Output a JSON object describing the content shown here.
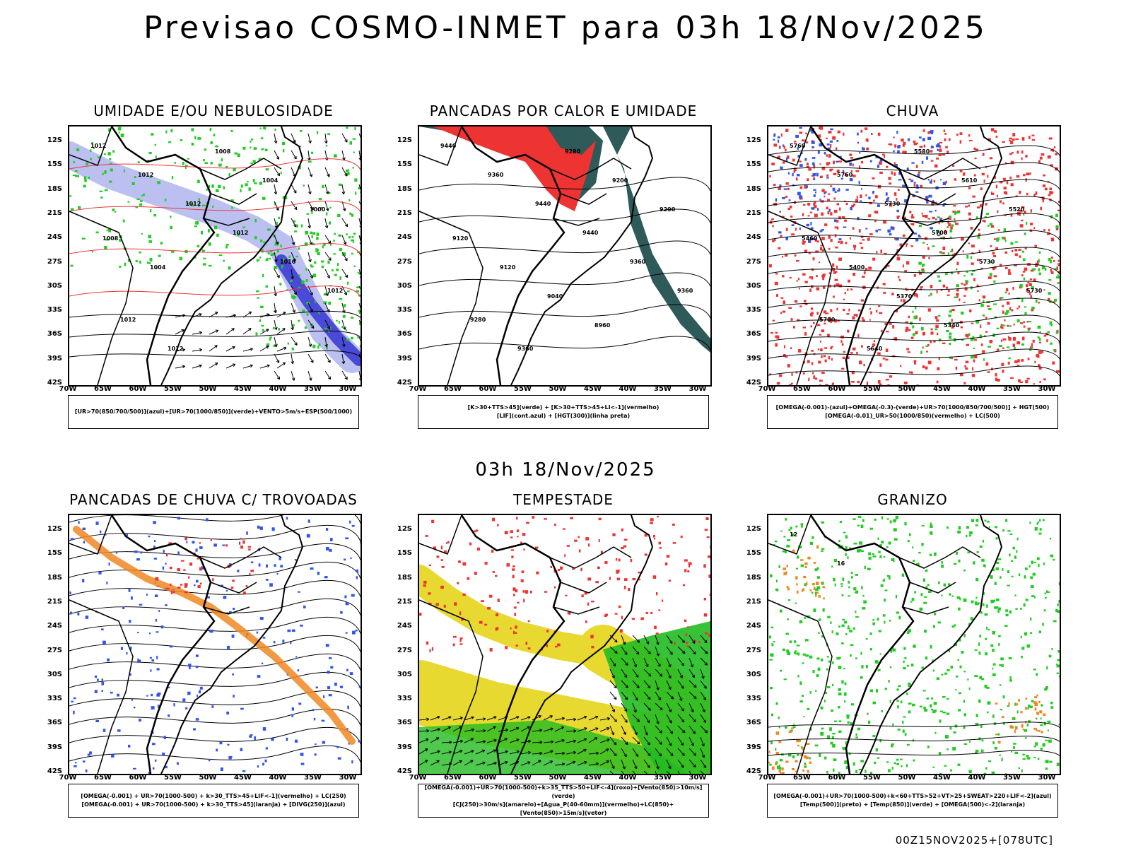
{
  "title": "Previsao COSMO-INMET  para 03h 18/Nov/2025",
  "mid_time": "03h 18/Nov/2025",
  "footer": "00Z15NOV2025+[078UTC]",
  "lat_labels": [
    "12S",
    "15S",
    "18S",
    "21S",
    "24S",
    "27S",
    "30S",
    "33S",
    "36S",
    "39S",
    "42S"
  ],
  "lon_labels": [
    "70W",
    "65W",
    "60W",
    "55W",
    "50W",
    "45W",
    "40W",
    "35W",
    "30W"
  ],
  "panels": [
    {
      "title": "UMIDADE E/OU NEBULOSIDADE",
      "legend": [
        "[UR>70(850/700/500)](azul)+[UR>70(1000/850)](verde)+VENTO>5m/s+ESP(500/1000)"
      ],
      "contours": [
        "1012",
        "1012",
        "1012",
        "1012",
        "1016",
        "1012",
        "1012",
        "1012",
        "1008",
        "1004",
        "1000",
        "1008",
        "1004"
      ]
    },
    {
      "title": "PANCADAS POR CALOR E UMIDADE",
      "legend": [
        "[K>30+TTS>45](verde) + [K>30+TTS>45+LI<-1](vermelho)",
        "[LIF](cont.azul) + [HGT(300)](linha preta)"
      ],
      "contours": [
        "9440",
        "9360",
        "9440",
        "9440",
        "9360",
        "9360",
        "9280",
        "9360",
        "9280",
        "9200",
        "9200",
        "9120",
        "9120",
        "9040",
        "8960"
      ]
    },
    {
      "title": "CHUVA",
      "legend": [
        "[OMEGA(-0.001)-(azul)+OMEGA(-0.3)-(verde)+UR>70(1000/850/700/500)] + HGT(500)",
        "[OMEGA(-0.01)_UR>50(1000/850)(vermelho) + LC(500)"
      ],
      "contours": [
        "5760",
        "5760",
        "5730",
        "5700",
        "5730",
        "5730",
        "5700",
        "5640",
        "5580",
        "5610",
        "5520",
        "5460",
        "5400",
        "5370",
        "5340"
      ]
    },
    {
      "title": "PANCADAS DE CHUVA C/ TROVOADAS",
      "legend": [
        "[OMEGA(-0.001) + UR>70(1000-500) + k>30_TTS>45+LIF<-1](vermelho) + LC(250)",
        "[OMEGA(-0.001) + UR>70(1000-500) + k>30_TTS>45](laranja) + [DIVG(250)](azul)"
      ],
      "contours": []
    },
    {
      "title": "TEMPESTADE",
      "legend": [
        "[OMEGA(-0.001)+UR>70(1000-500)+k>35_TTS>50+LIF<-4](roxo)+[Vento(850)>10m/s](verde)",
        "[CJ(250)>30m/s](amarelo)+[Agua_P(40-60mm)](vermelho)+LC(850)+[Vento(850)>15m/s](vetor)"
      ],
      "contours": []
    },
    {
      "title": "GRANIZO",
      "legend": [
        "[OMEGA(-0.001)+UR>70(1000-500)+k<60+TTS>52+VT>25+SWEAT>220+LIF<-2](azul)",
        "[Temp(500)](preto) + [Temp(850)](verde) + [OMEGA(500)<-2](laranja)"
      ],
      "contours": [
        "12",
        "16"
      ]
    }
  ],
  "colors": {
    "humid_blue": "#aab0ee",
    "humid_dark_blue": "#4a4ad8",
    "humid_green": "#22cc22",
    "red": "#ee3333",
    "teal": "#2f5a5a",
    "orange": "#ee8822",
    "blue_dots": "#3355ee",
    "yellow": "#e8d930",
    "storm_green": "#22bb22",
    "black": "#000000"
  }
}
